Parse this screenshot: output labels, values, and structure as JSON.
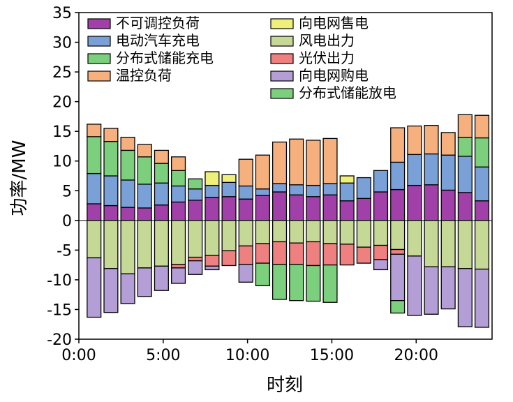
{
  "chart_data": {
    "type": "bar",
    "stacked": true,
    "xlabel": "时刻",
    "ylabel": "功率/MW",
    "ylim": [
      -20,
      35
    ],
    "yticks": [
      -20,
      -15,
      -10,
      -5,
      0,
      5,
      10,
      15,
      20,
      25,
      30,
      35
    ],
    "xlim": [
      0,
      24.5
    ],
    "xticks": [
      0,
      5,
      10,
      15,
      20
    ],
    "xtick_labels": [
      "0:00",
      "5:00",
      "10:00",
      "15:00",
      "20:00"
    ],
    "hours": [
      1,
      2,
      3,
      4,
      5,
      6,
      7,
      8,
      9,
      10,
      11,
      12,
      13,
      14,
      15,
      16,
      17,
      18,
      19,
      20,
      21,
      22,
      23,
      24
    ],
    "legend": [
      "不可调控负荷",
      "电动汽车充电",
      "分布式储能充电",
      "温控负荷",
      "向电网售电",
      "风电出力",
      "光伏出力",
      "向电网购电",
      "分布式储能放电"
    ],
    "colors": {
      "uncontrollable": "#a040a8",
      "ev": "#7aa0d8",
      "storage_charge": "#7ccf7c",
      "thermal": "#f5b07e",
      "sell": "#eef07a",
      "wind": "#c6d896",
      "pv": "#ef8080",
      "buy": "#b49ed6",
      "storage_discharge": "#7ccf7c"
    },
    "positive_series": [
      {
        "key": "uncontrollable",
        "name": "不可调控负荷",
        "values": [
          2.8,
          2.5,
          2.2,
          2.1,
          2.6,
          3.1,
          3.4,
          3.9,
          4.0,
          3.6,
          4.2,
          4.8,
          4.3,
          4.0,
          4.3,
          3.3,
          3.7,
          4.8,
          5.2,
          5.9,
          6.0,
          5.1,
          4.7,
          3.3
        ]
      },
      {
        "key": "ev",
        "name": "电动汽车充电",
        "values": [
          5.1,
          5.0,
          4.6,
          4.0,
          3.7,
          2.7,
          1.9,
          2.0,
          2.4,
          2.2,
          1.1,
          1.4,
          1.7,
          1.9,
          1.9,
          3.0,
          3.5,
          3.6,
          4.6,
          5.2,
          5.2,
          5.9,
          6.1,
          5.7
        ]
      },
      {
        "key": "storage_charge",
        "name": "分布式储能充电",
        "values": [
          6.2,
          5.8,
          5.0,
          4.6,
          3.3,
          2.6,
          1.7,
          0,
          0,
          0,
          0,
          0,
          0,
          0,
          0,
          0,
          0,
          0,
          0,
          0,
          0,
          0,
          3.2,
          4.9
        ]
      },
      {
        "key": "thermal",
        "name": "温控负荷",
        "values": [
          2.1,
          2.2,
          2.2,
          2.1,
          2.2,
          2.3,
          0,
          0,
          0,
          4.5,
          5.7,
          7.0,
          7.7,
          7.6,
          7.6,
          0,
          0,
          0,
          5.8,
          4.8,
          4.8,
          3.8,
          3.8,
          3.8
        ]
      },
      {
        "key": "sell",
        "name": "向电网售电",
        "values": [
          0,
          0,
          0,
          0,
          0,
          0,
          0,
          2.3,
          1.3,
          0,
          0,
          0,
          0,
          0,
          0,
          1.2,
          0,
          0,
          0,
          0,
          0,
          0,
          0,
          0
        ]
      }
    ],
    "negative_series": [
      {
        "key": "wind",
        "name": "风电出力",
        "values": [
          6.3,
          8.1,
          9.0,
          8.0,
          7.7,
          7.4,
          6.2,
          5.9,
          5.1,
          4.3,
          3.9,
          3.6,
          3.8,
          3.6,
          3.9,
          4.0,
          4.5,
          4.2,
          4.9,
          6.0,
          7.8,
          7.8,
          8.1,
          8.2
        ]
      },
      {
        "key": "pv",
        "name": "光伏出力",
        "values": [
          0,
          0,
          0,
          0,
          0,
          0.6,
          0.6,
          1.8,
          2.5,
          3.1,
          3.3,
          3.8,
          3.6,
          4.0,
          3.6,
          3.5,
          2.7,
          2.4,
          0.8,
          0,
          0,
          0,
          0,
          0
        ]
      },
      {
        "key": "buy",
        "name": "向电网购电",
        "values": [
          10.0,
          7.4,
          5.0,
          4.8,
          4.1,
          2.6,
          2.3,
          0.6,
          0,
          3.0,
          0,
          0,
          0,
          0,
          0,
          0,
          0,
          1.7,
          7.8,
          10.0,
          8.0,
          7.1,
          9.8,
          9.8
        ]
      },
      {
        "key": "storage_discharge",
        "name": "分布式储能放电",
        "values": [
          0,
          0,
          0,
          0,
          0,
          0,
          0,
          0,
          0,
          0,
          3.8,
          5.9,
          6.1,
          6.0,
          6.3,
          0,
          0,
          0,
          2.1,
          0,
          0,
          0,
          0,
          0
        ]
      }
    ]
  }
}
